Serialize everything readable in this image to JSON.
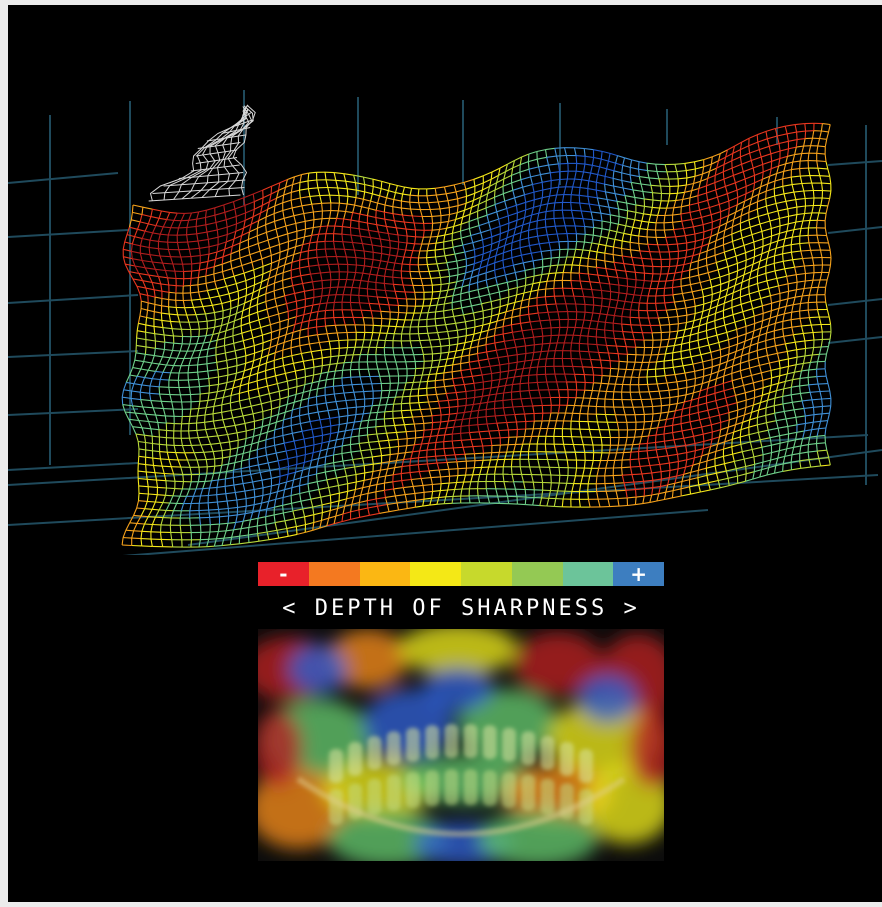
{
  "legend": {
    "minus_label": "-",
    "plus_label": "+",
    "colors": [
      "#e8212a",
      "#f47920",
      "#fbb713",
      "#f4e816",
      "#c7d92c",
      "#94c954",
      "#6cc49a",
      "#3d7ec0"
    ],
    "caption": "< DEPTH OF SHARPNESS >"
  },
  "mesh": {
    "wire_colors": [
      "#b01d1d",
      "#e8361e",
      "#f6a21b",
      "#f5e81a",
      "#b8d93a",
      "#6fd08a",
      "#3f8fd6",
      "#2058c9"
    ],
    "occlusal_tip_color": "#d8d8d8",
    "grid_color": "#1f4a5c"
  },
  "panoramic": {
    "colors": [
      "#b52222",
      "#f08a1a",
      "#e7e31b",
      "#62c46a",
      "#2f5fd0"
    ]
  }
}
